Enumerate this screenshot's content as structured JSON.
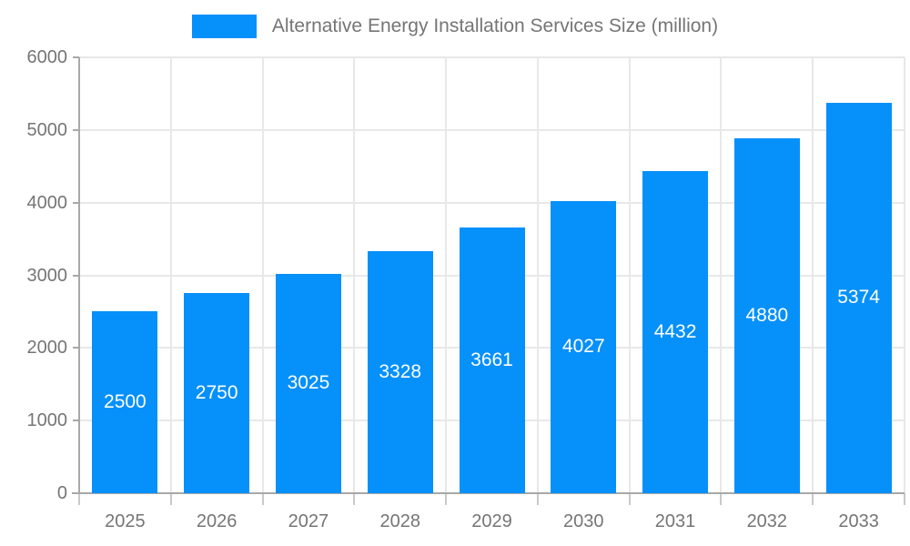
{
  "legend": {
    "series_label": "Alternative Energy Installation Services Size (million)"
  },
  "chart_data": {
    "type": "bar",
    "title": "Alternative Energy Installation Services Size (million)",
    "categories": [
      "2025",
      "2026",
      "2027",
      "2028",
      "2029",
      "2030",
      "2031",
      "2032",
      "2033"
    ],
    "values": [
      2500,
      2750,
      3025,
      3328,
      3661,
      4027,
      4432,
      4880,
      5374
    ],
    "series": [
      {
        "name": "Alternative Energy Installation Services Size (million)",
        "values": [
          2500,
          2750,
          3025,
          3328,
          3661,
          4027,
          4432,
          4880,
          5374
        ]
      }
    ],
    "xlabel": "",
    "ylabel": "",
    "ylim": [
      0,
      6000
    ],
    "ytick_step": 1000,
    "ytick_labels": [
      "0",
      "1000",
      "2000",
      "3000",
      "4000",
      "5000",
      "6000"
    ],
    "grid": true,
    "legend_position": "top",
    "bar_color": "#0690fa",
    "bar_label_color": "#ffffff",
    "axis_text_color": "#757575"
  }
}
